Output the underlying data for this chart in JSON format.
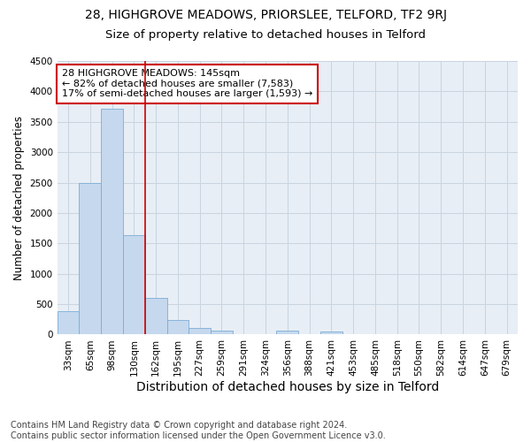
{
  "title1": "28, HIGHGROVE MEADOWS, PRIORSLEE, TELFORD, TF2 9RJ",
  "title2": "Size of property relative to detached houses in Telford",
  "xlabel": "Distribution of detached houses by size in Telford",
  "ylabel": "Number of detached properties",
  "categories": [
    "33sqm",
    "65sqm",
    "98sqm",
    "130sqm",
    "162sqm",
    "195sqm",
    "227sqm",
    "259sqm",
    "291sqm",
    "324sqm",
    "356sqm",
    "388sqm",
    "421sqm",
    "453sqm",
    "485sqm",
    "518sqm",
    "550sqm",
    "582sqm",
    "614sqm",
    "647sqm",
    "679sqm"
  ],
  "values": [
    380,
    2500,
    3720,
    1630,
    600,
    240,
    110,
    65,
    0,
    0,
    65,
    0,
    50,
    0,
    0,
    0,
    0,
    0,
    0,
    0,
    0
  ],
  "bar_color": "#c5d8ee",
  "bar_edge_color": "#7aadd4",
  "vline_x": 3.5,
  "vline_color": "#cc0000",
  "annotation_text": "28 HIGHGROVE MEADOWS: 145sqm\n← 82% of detached houses are smaller (7,583)\n17% of semi-detached houses are larger (1,593) →",
  "annotation_box_color": "#cc0000",
  "ylim": [
    0,
    4500
  ],
  "bg_color": "#e8eef5",
  "grid_color": "#c8d4e0",
  "footnote": "Contains HM Land Registry data © Crown copyright and database right 2024.\nContains public sector information licensed under the Open Government Licence v3.0.",
  "title1_fontsize": 10,
  "title2_fontsize": 9.5,
  "xlabel_fontsize": 10,
  "ylabel_fontsize": 8.5,
  "tick_fontsize": 7.5,
  "annotation_fontsize": 8,
  "footnote_fontsize": 7
}
